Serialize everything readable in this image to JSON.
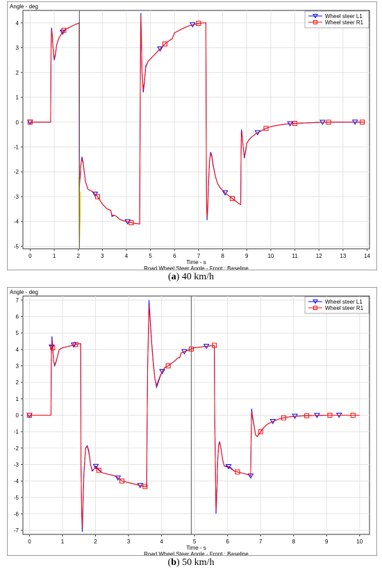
{
  "chart_data": [
    {
      "type": "line",
      "ylabel": "Angle - deg",
      "xlabel": "Time - s",
      "subtitle": "Road Wheel Steer Angle - Front : Baseline",
      "caption_letter": "a",
      "caption_rest": " 40 km/h",
      "xlim": [
        -0.3,
        14.1
      ],
      "ylim": [
        -5.1,
        4.5
      ],
      "xticks": [
        0,
        1,
        2,
        3,
        4,
        5,
        6,
        7,
        8,
        9,
        10,
        11,
        12,
        13,
        14
      ],
      "yticks": [
        -5,
        -4,
        -3,
        -2,
        -1,
        0,
        1,
        2,
        3,
        4
      ],
      "grid": true,
      "legend_position": "top-right",
      "cursor_x": 2.05,
      "series": [
        {
          "name": "Wheel steer L1",
          "color": "#0000ff",
          "marker": "triangle-down",
          "x": [
            0,
            0.85,
            0.87,
            0.89,
            0.92,
            0.95,
            1.0,
            1.05,
            1.1,
            1.2,
            1.3,
            1.4,
            1.6,
            1.8,
            2.0,
            2.04,
            2.05,
            2.06,
            2.08,
            2.1,
            2.15,
            2.2,
            2.3,
            2.4,
            2.6,
            2.8,
            3.0,
            3.2,
            3.35,
            3.4,
            3.5,
            3.6,
            3.7,
            3.8,
            4.0,
            4.2,
            4.4,
            4.55,
            4.56,
            4.58,
            4.6,
            4.62,
            4.65,
            4.7,
            4.75,
            4.8,
            4.9,
            5.0,
            5.2,
            5.4,
            5.6,
            5.8,
            5.9,
            6.0,
            6.2,
            6.4,
            6.6,
            6.8,
            7.0,
            7.2,
            7.3,
            7.32,
            7.33,
            7.35,
            7.38,
            7.4,
            7.45,
            7.5,
            7.55,
            7.6,
            7.7,
            7.8,
            7.9,
            8.0,
            8.1,
            8.3,
            8.5,
            8.7,
            8.75,
            8.76,
            8.78,
            8.8,
            8.85,
            8.9,
            8.95,
            9.0,
            9.1,
            9.2,
            9.4,
            9.6,
            9.8,
            10.0,
            10.3,
            10.6,
            11.0,
            11.5,
            12.0,
            12.5,
            13.0,
            13.5,
            13.9
          ],
          "y": [
            0,
            0,
            3.0,
            3.8,
            3.5,
            3.0,
            2.5,
            2.7,
            3.1,
            3.4,
            3.55,
            3.7,
            3.8,
            3.9,
            3.98,
            4.0,
            -2.6,
            -2.4,
            -2.2,
            -1.8,
            -1.4,
            -1.6,
            -2.4,
            -2.7,
            -2.8,
            -3.0,
            -3.3,
            -3.5,
            -3.55,
            -3.8,
            -3.75,
            -3.8,
            -3.9,
            -3.95,
            -4.0,
            -4.05,
            -4.08,
            -4.1,
            -2.0,
            2.0,
            4.4,
            3.5,
            2.0,
            1.2,
            1.6,
            2.2,
            2.45,
            2.55,
            2.75,
            2.95,
            3.15,
            3.3,
            3.35,
            3.6,
            3.7,
            3.8,
            3.88,
            3.93,
            3.98,
            4.0,
            4.0,
            -2.0,
            -3.2,
            -3.95,
            -3.5,
            -2.8,
            -1.6,
            -1.2,
            -1.35,
            -1.7,
            -2.2,
            -2.5,
            -2.65,
            -2.75,
            -2.85,
            -3.0,
            -3.15,
            -3.3,
            -3.32,
            -1.5,
            -0.3,
            -0.4,
            -1.0,
            -1.45,
            -1.2,
            -0.85,
            -0.7,
            -0.6,
            -0.45,
            -0.35,
            -0.25,
            -0.18,
            -0.12,
            -0.08,
            -0.05,
            -0.03,
            -0.01,
            0,
            0,
            0,
            0
          ],
          "marker_x": [
            0,
            1.35,
            2.7,
            4.05,
            5.4,
            6.75,
            8.1,
            9.45,
            10.8,
            12.15,
            13.5
          ]
        },
        {
          "name": "Wheel steer R1",
          "color": "#ff0000",
          "marker": "square",
          "x": [
            0,
            0.85,
            0.87,
            0.89,
            0.92,
            0.95,
            1.0,
            1.05,
            1.1,
            1.2,
            1.3,
            1.4,
            1.6,
            1.8,
            2.0,
            2.04,
            2.05,
            2.06,
            2.08,
            2.1,
            2.15,
            2.2,
            2.3,
            2.4,
            2.6,
            2.8,
            3.0,
            3.2,
            3.35,
            3.4,
            3.5,
            3.6,
            3.7,
            3.8,
            4.0,
            4.2,
            4.4,
            4.55,
            4.56,
            4.58,
            4.6,
            4.62,
            4.65,
            4.7,
            4.75,
            4.8,
            4.9,
            5.0,
            5.2,
            5.4,
            5.6,
            5.8,
            5.9,
            6.0,
            6.2,
            6.4,
            6.6,
            6.8,
            7.0,
            7.2,
            7.3,
            7.32,
            7.33,
            7.35,
            7.38,
            7.4,
            7.45,
            7.5,
            7.55,
            7.6,
            7.7,
            7.8,
            7.9,
            8.0,
            8.1,
            8.3,
            8.5,
            8.7,
            8.75,
            8.76,
            8.78,
            8.8,
            8.85,
            8.9,
            8.95,
            9.0,
            9.1,
            9.2,
            9.4,
            9.6,
            9.8,
            10.0,
            10.3,
            10.6,
            11.0,
            11.5,
            12.0,
            12.5,
            13.0,
            13.5,
            13.9
          ],
          "y": [
            0,
            0,
            2.9,
            3.7,
            3.45,
            3.0,
            2.55,
            2.75,
            3.1,
            3.4,
            3.55,
            3.7,
            3.8,
            3.9,
            3.98,
            4.0,
            -2.5,
            -2.35,
            -2.15,
            -1.8,
            -1.45,
            -1.65,
            -2.4,
            -2.7,
            -2.8,
            -3.0,
            -3.3,
            -3.5,
            -3.55,
            -3.75,
            -3.75,
            -3.8,
            -3.9,
            -3.95,
            -4.0,
            -4.05,
            -4.08,
            -4.1,
            -2.0,
            2.0,
            4.3,
            3.4,
            2.0,
            1.3,
            1.65,
            2.25,
            2.45,
            2.55,
            2.75,
            2.95,
            3.15,
            3.3,
            3.35,
            3.6,
            3.7,
            3.8,
            3.88,
            3.93,
            3.98,
            4.0,
            4.0,
            -2.0,
            -3.1,
            -3.85,
            -3.4,
            -2.7,
            -1.55,
            -1.25,
            -1.4,
            -1.75,
            -2.2,
            -2.5,
            -2.65,
            -2.75,
            -2.85,
            -3.0,
            -3.15,
            -3.3,
            -3.32,
            -1.5,
            -0.35,
            -0.45,
            -1.0,
            -1.4,
            -1.15,
            -0.85,
            -0.7,
            -0.6,
            -0.45,
            -0.35,
            -0.25,
            -0.18,
            -0.12,
            -0.08,
            -0.05,
            -0.03,
            -0.01,
            0,
            0,
            0,
            0
          ],
          "marker_x": [
            0,
            1.4,
            2.8,
            4.2,
            5.6,
            7.0,
            8.4,
            9.8,
            11.0,
            12.4,
            13.8
          ]
        },
        {
          "name": "",
          "color": "#d4c800",
          "marker": "none",
          "x": [
            2.02,
            2.03,
            2.05,
            2.07,
            2.1
          ],
          "y": [
            -2.2,
            -3.5,
            -5.0,
            -4.2,
            -2.8
          ],
          "marker_x": []
        }
      ]
    },
    {
      "type": "line",
      "ylabel": "Angle - deg",
      "xlabel": "Time - s",
      "subtitle": "Road Wheel Steer Angle - Front : Baseline",
      "caption_letter": "b",
      "caption_rest": " 50 km/h",
      "xlim": [
        -0.2,
        10.3
      ],
      "ylim": [
        -7.25,
        7.25
      ],
      "xticks": [
        0,
        1,
        2,
        3,
        4,
        5,
        6,
        7,
        8,
        9,
        10
      ],
      "yticks": [
        -7,
        -6,
        -5,
        -4,
        -3,
        -2,
        -1,
        0,
        1,
        2,
        3,
        4,
        5,
        6,
        7
      ],
      "grid": true,
      "legend_position": "top-right",
      "cursor_x": 4.9,
      "series": [
        {
          "name": "Wheel steer L1",
          "color": "#0000ff",
          "marker": "triangle-down",
          "x": [
            0,
            0.65,
            0.66,
            0.68,
            0.7,
            0.73,
            0.76,
            0.8,
            0.85,
            0.9,
            1.0,
            1.1,
            1.2,
            1.3,
            1.4,
            1.5,
            1.55,
            1.56,
            1.58,
            1.6,
            1.62,
            1.65,
            1.7,
            1.75,
            1.8,
            1.85,
            1.9,
            1.95,
            2.0,
            2.05,
            2.1,
            2.2,
            2.4,
            2.6,
            2.8,
            3.0,
            3.2,
            3.4,
            3.55,
            3.56,
            3.58,
            3.6,
            3.62,
            3.65,
            3.7,
            3.75,
            3.8,
            3.85,
            3.9,
            4.0,
            4.1,
            4.2,
            4.4,
            4.5,
            4.55,
            4.6,
            4.8,
            5.0,
            5.2,
            5.4,
            5.6,
            5.61,
            5.63,
            5.65,
            5.68,
            5.7,
            5.73,
            5.76,
            5.8,
            5.85,
            5.9,
            6.0,
            6.1,
            6.2,
            6.4,
            6.6,
            6.7,
            6.71,
            6.73,
            6.75,
            6.8,
            6.85,
            6.9,
            7.0,
            7.1,
            7.2,
            7.4,
            7.6,
            7.8,
            8.0,
            8.3,
            8.6,
            9.0,
            9.5,
            10.0
          ],
          "y": [
            0,
            0,
            3.5,
            4.8,
            4.2,
            3.3,
            3.0,
            3.2,
            3.6,
            4.0,
            4.1,
            4.15,
            4.2,
            4.25,
            4.3,
            4.35,
            4.35,
            -3.0,
            -6.0,
            -7.1,
            -5.5,
            -3.5,
            -2.0,
            -1.85,
            -2.2,
            -3.0,
            -3.4,
            -3.3,
            -3.1,
            -3.2,
            -3.3,
            -3.5,
            -3.6,
            -3.7,
            -4.0,
            -4.1,
            -4.2,
            -4.3,
            -4.35,
            -1.0,
            3.0,
            5.0,
            7.0,
            6.0,
            4.5,
            3.2,
            2.2,
            1.7,
            2.0,
            2.6,
            2.9,
            3.0,
            3.3,
            3.5,
            3.5,
            3.8,
            3.95,
            4.1,
            4.15,
            4.2,
            4.25,
            0.0,
            -3.0,
            -6.0,
            -4.5,
            -2.8,
            -1.8,
            -1.6,
            -2.0,
            -2.7,
            -3.1,
            -3.1,
            -3.2,
            -3.4,
            -3.5,
            -3.6,
            -3.7,
            -2.0,
            0.4,
            0.0,
            -0.6,
            -1.2,
            -1.3,
            -1.0,
            -0.75,
            -0.55,
            -0.35,
            -0.2,
            -0.12,
            -0.07,
            -0.04,
            -0.02,
            0,
            0,
            0
          ],
          "marker_x": [
            0,
            0.67,
            1.34,
            2.01,
            2.68,
            3.35,
            4.02,
            4.69,
            5.36,
            6.03,
            6.7,
            7.37,
            8.04,
            8.71,
            9.38
          ]
        },
        {
          "name": "Wheel steer R1",
          "color": "#ff0000",
          "marker": "square",
          "x": [
            0,
            0.65,
            0.66,
            0.68,
            0.7,
            0.73,
            0.76,
            0.8,
            0.85,
            0.9,
            1.0,
            1.1,
            1.2,
            1.3,
            1.4,
            1.5,
            1.55,
            1.56,
            1.58,
            1.6,
            1.62,
            1.65,
            1.7,
            1.75,
            1.8,
            1.85,
            1.9,
            1.95,
            2.0,
            2.05,
            2.1,
            2.2,
            2.4,
            2.6,
            2.8,
            3.0,
            3.2,
            3.4,
            3.55,
            3.56,
            3.58,
            3.6,
            3.62,
            3.65,
            3.7,
            3.75,
            3.8,
            3.85,
            3.9,
            4.0,
            4.1,
            4.2,
            4.4,
            4.5,
            4.55,
            4.6,
            4.8,
            5.0,
            5.2,
            5.4,
            5.6,
            5.61,
            5.63,
            5.65,
            5.68,
            5.7,
            5.73,
            5.76,
            5.8,
            5.85,
            5.9,
            6.0,
            6.1,
            6.2,
            6.4,
            6.6,
            6.7,
            6.71,
            6.73,
            6.75,
            6.8,
            6.85,
            6.9,
            7.0,
            7.1,
            7.2,
            7.4,
            7.6,
            7.8,
            8.0,
            8.3,
            8.6,
            9.0,
            9.5,
            10.0
          ],
          "y": [
            0,
            0,
            3.4,
            4.6,
            4.1,
            3.3,
            3.05,
            3.25,
            3.6,
            4.0,
            4.1,
            4.15,
            4.2,
            4.25,
            4.3,
            4.35,
            4.35,
            -3.0,
            -5.8,
            -6.8,
            -5.3,
            -3.4,
            -2.0,
            -1.9,
            -2.3,
            -3.0,
            -3.35,
            -3.3,
            -3.15,
            -3.25,
            -3.35,
            -3.5,
            -3.6,
            -3.7,
            -4.0,
            -4.1,
            -4.2,
            -4.3,
            -4.35,
            -1.0,
            3.0,
            4.8,
            6.7,
            5.8,
            4.4,
            3.1,
            2.2,
            1.8,
            2.1,
            2.6,
            2.9,
            3.0,
            3.3,
            3.5,
            3.5,
            3.8,
            3.95,
            4.1,
            4.15,
            4.2,
            4.25,
            0.0,
            -3.0,
            -5.8,
            -4.4,
            -2.8,
            -1.85,
            -1.65,
            -2.0,
            -2.7,
            -3.1,
            -3.15,
            -3.25,
            -3.4,
            -3.5,
            -3.6,
            -3.7,
            -2.0,
            0.2,
            -0.1,
            -0.65,
            -1.2,
            -1.3,
            -1.0,
            -0.75,
            -0.55,
            -0.35,
            -0.2,
            -0.12,
            -0.07,
            -0.04,
            -0.02,
            0,
            0,
            0
          ],
          "marker_x": [
            0,
            0.7,
            1.4,
            2.1,
            2.8,
            3.5,
            4.2,
            4.9,
            5.6,
            6.3,
            7.0,
            7.7,
            8.4,
            9.1,
            9.8
          ]
        }
      ]
    }
  ]
}
